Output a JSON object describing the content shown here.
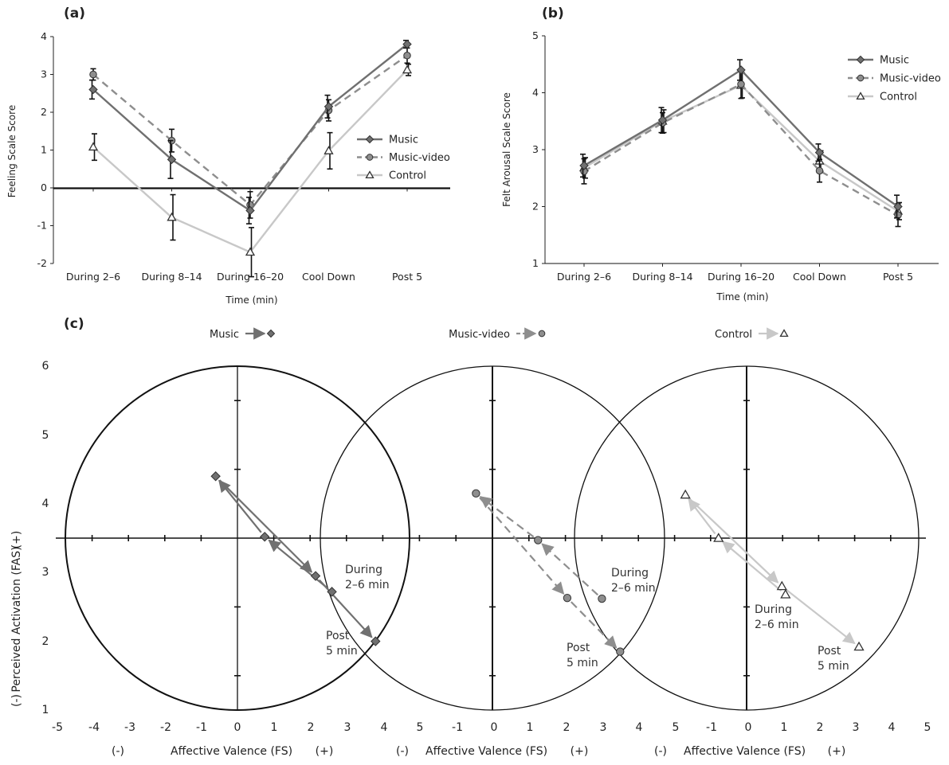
{
  "chart_data": [
    {
      "id": "a",
      "panel_label": "(a)",
      "type": "line",
      "title": "",
      "xlabel": "Time (min)",
      "ylabel": "Feeling Scale Score",
      "ylim": [
        -2,
        4
      ],
      "yticks": [
        "-2",
        "-1",
        "0",
        "1",
        "2",
        "3",
        "4"
      ],
      "categories": [
        "During 2–6",
        "During 8–14",
        "During 16–20",
        "Cool Down",
        "Post 5"
      ],
      "legend_position": "right",
      "series": [
        {
          "name": "Music",
          "marker": "diamond",
          "dash": "solid",
          "color": "#707070",
          "values": [
            2.6,
            0.75,
            -0.6,
            2.15,
            3.8
          ],
          "err": [
            0.25,
            0.5,
            0.35,
            0.3,
            0.1
          ]
        },
        {
          "name": "Music-video",
          "marker": "circle",
          "dash": "dashed",
          "color": "#8e8e8e",
          "values": [
            3.0,
            1.25,
            -0.45,
            2.05,
            3.5
          ],
          "err": [
            0.15,
            0.3,
            0.35,
            0.28,
            0.2
          ]
        },
        {
          "name": "Control",
          "marker": "triangle",
          "dash": "solid",
          "color": "#c8c8c8",
          "values": [
            1.08,
            -0.78,
            -1.7,
            0.98,
            3.12
          ],
          "err": [
            0.35,
            0.6,
            0.65,
            0.48,
            0.15
          ]
        }
      ]
    },
    {
      "id": "b",
      "panel_label": "(b)",
      "type": "line",
      "title": "",
      "xlabel": "Time (min)",
      "ylabel": "Felt Arousal Scale  Score",
      "ylim": [
        1,
        5
      ],
      "yticks": [
        "1",
        "2",
        "3",
        "4",
        "5"
      ],
      "categories": [
        "During 2–6",
        "During 8–14",
        "During 16–20",
        "Cool Down",
        "Post 5"
      ],
      "legend_position": "top-right",
      "series": [
        {
          "name": "Music",
          "marker": "diamond",
          "dash": "solid",
          "color": "#707070",
          "values": [
            2.72,
            3.52,
            4.4,
            2.95,
            2.0
          ],
          "err": [
            0.2,
            0.22,
            0.18,
            0.15,
            0.2
          ]
        },
        {
          "name": "Music-video",
          "marker": "circle",
          "dash": "dashed",
          "color": "#8e8e8e",
          "values": [
            2.62,
            3.47,
            4.15,
            2.63,
            1.85
          ],
          "err": [
            0.22,
            0.18,
            0.25,
            0.2,
            0.2
          ]
        },
        {
          "name": "Control",
          "marker": "triangle",
          "dash": "solid",
          "color": "#c8c8c8",
          "values": [
            2.68,
            3.5,
            4.13,
            2.8,
            1.92
          ],
          "err": [
            0.18,
            0.2,
            0.22,
            0.18,
            0.15
          ]
        }
      ]
    },
    {
      "id": "c",
      "panel_label": "(c)",
      "type": "scatter",
      "title": "",
      "ylabel": "Perceived Activation (FAS)",
      "ylabel_minus": "(-)",
      "ylabel_plus": "(+)",
      "ylim": [
        1,
        6
      ],
      "yticks": [
        "1",
        "2",
        "3",
        "4",
        "5",
        "6"
      ],
      "xlabel": "Affective Valence (FS)",
      "xlabel_minus": "(-)",
      "xlabel_plus": "(+)",
      "xticks": [
        "-5",
        "-4",
        "-3",
        "-2",
        "-1",
        "0",
        "1",
        "2",
        "3",
        "4",
        "5",
        "-1",
        "0",
        "1",
        "2",
        "3",
        "4",
        "5",
        "-1",
        "0",
        "1",
        "2",
        "3",
        "4",
        "5"
      ],
      "groups": [
        {
          "name": "Music",
          "marker": "diamond",
          "dash": "solid",
          "color": "#707070",
          "points": [
            [
              2.6,
              2.72
            ],
            [
              0.75,
              3.52
            ],
            [
              -0.6,
              4.4
            ],
            [
              2.15,
              2.95
            ],
            [
              3.8,
              2.0
            ]
          ],
          "annotation_start": [
            "During",
            "2–6 min"
          ],
          "annotation_end": [
            "Post",
            "5 min"
          ]
        },
        {
          "name": "Music-video",
          "marker": "circle",
          "dash": "dashed",
          "color": "#8e8e8e",
          "points": [
            [
              3.0,
              2.62
            ],
            [
              1.25,
              3.47
            ],
            [
              -0.45,
              4.15
            ],
            [
              2.05,
              2.63
            ],
            [
              3.5,
              1.85
            ]
          ],
          "annotation_start": [
            "During",
            "2–6 min"
          ],
          "annotation_end": [
            "Post",
            "5 min"
          ]
        },
        {
          "name": "Control",
          "marker": "triangle",
          "dash": "solid",
          "color": "#c8c8c8",
          "points": [
            [
              1.08,
              2.68
            ],
            [
              -0.78,
              3.5
            ],
            [
              -1.7,
              4.13
            ],
            [
              0.98,
              2.8
            ],
            [
              3.12,
              1.92
            ]
          ],
          "annotation_start": [
            "During",
            "2–6 min"
          ],
          "annotation_end": [
            "Post",
            "5 min"
          ]
        }
      ]
    }
  ]
}
